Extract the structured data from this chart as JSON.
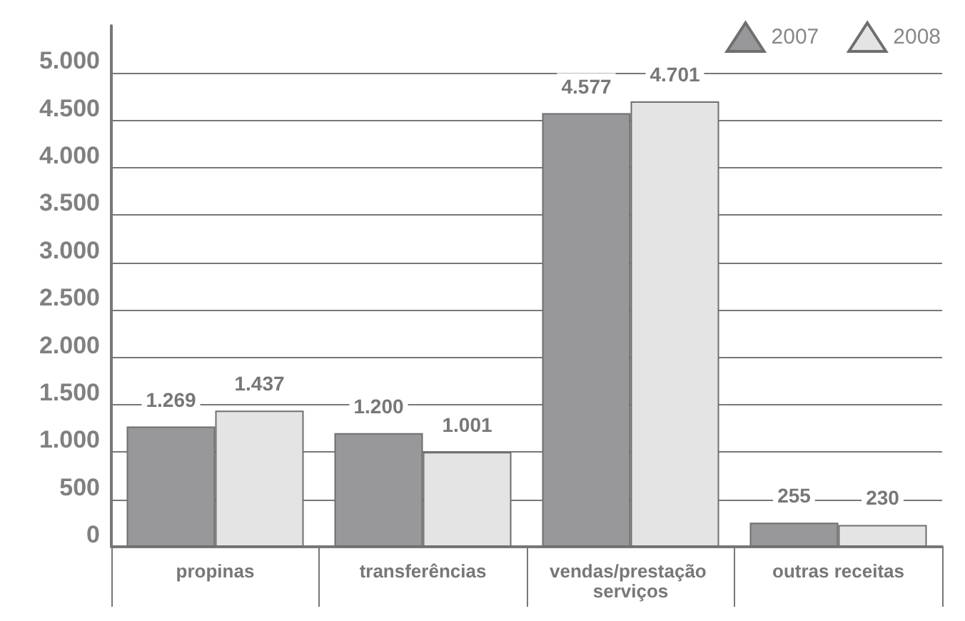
{
  "chart_data": {
    "type": "bar",
    "categories": [
      "propinas",
      "transferências",
      "vendas/prestação serviços",
      "outras receitas"
    ],
    "series": [
      {
        "name": "2007",
        "color": "#98989a",
        "values": [
          1269,
          1200,
          4577,
          255
        ],
        "value_labels": [
          "1.269",
          "1.200",
          "4.577",
          "255"
        ]
      },
      {
        "name": "2008",
        "color": "#e4e4e4",
        "values": [
          1437,
          1001,
          4701,
          230
        ],
        "value_labels": [
          "1.437",
          "1.001",
          "4.701",
          "230"
        ]
      }
    ],
    "ylim": [
      0,
      5500
    ],
    "yticks": [
      {
        "value": 0,
        "label": "0"
      },
      {
        "value": 500,
        "label": "500"
      },
      {
        "value": 1000,
        "label": "1.000"
      },
      {
        "value": 1500,
        "label": "1.500"
      },
      {
        "value": 2000,
        "label": "2.000"
      },
      {
        "value": 2500,
        "label": "2.500"
      },
      {
        "value": 3000,
        "label": "3.000"
      },
      {
        "value": 3500,
        "label": "3.500"
      },
      {
        "value": 4000,
        "label": "4.000"
      },
      {
        "value": 4500,
        "label": "4.500"
      },
      {
        "value": 5000,
        "label": "5.000"
      }
    ],
    "grid": "y",
    "legend": "top right",
    "marker": "triangle"
  }
}
